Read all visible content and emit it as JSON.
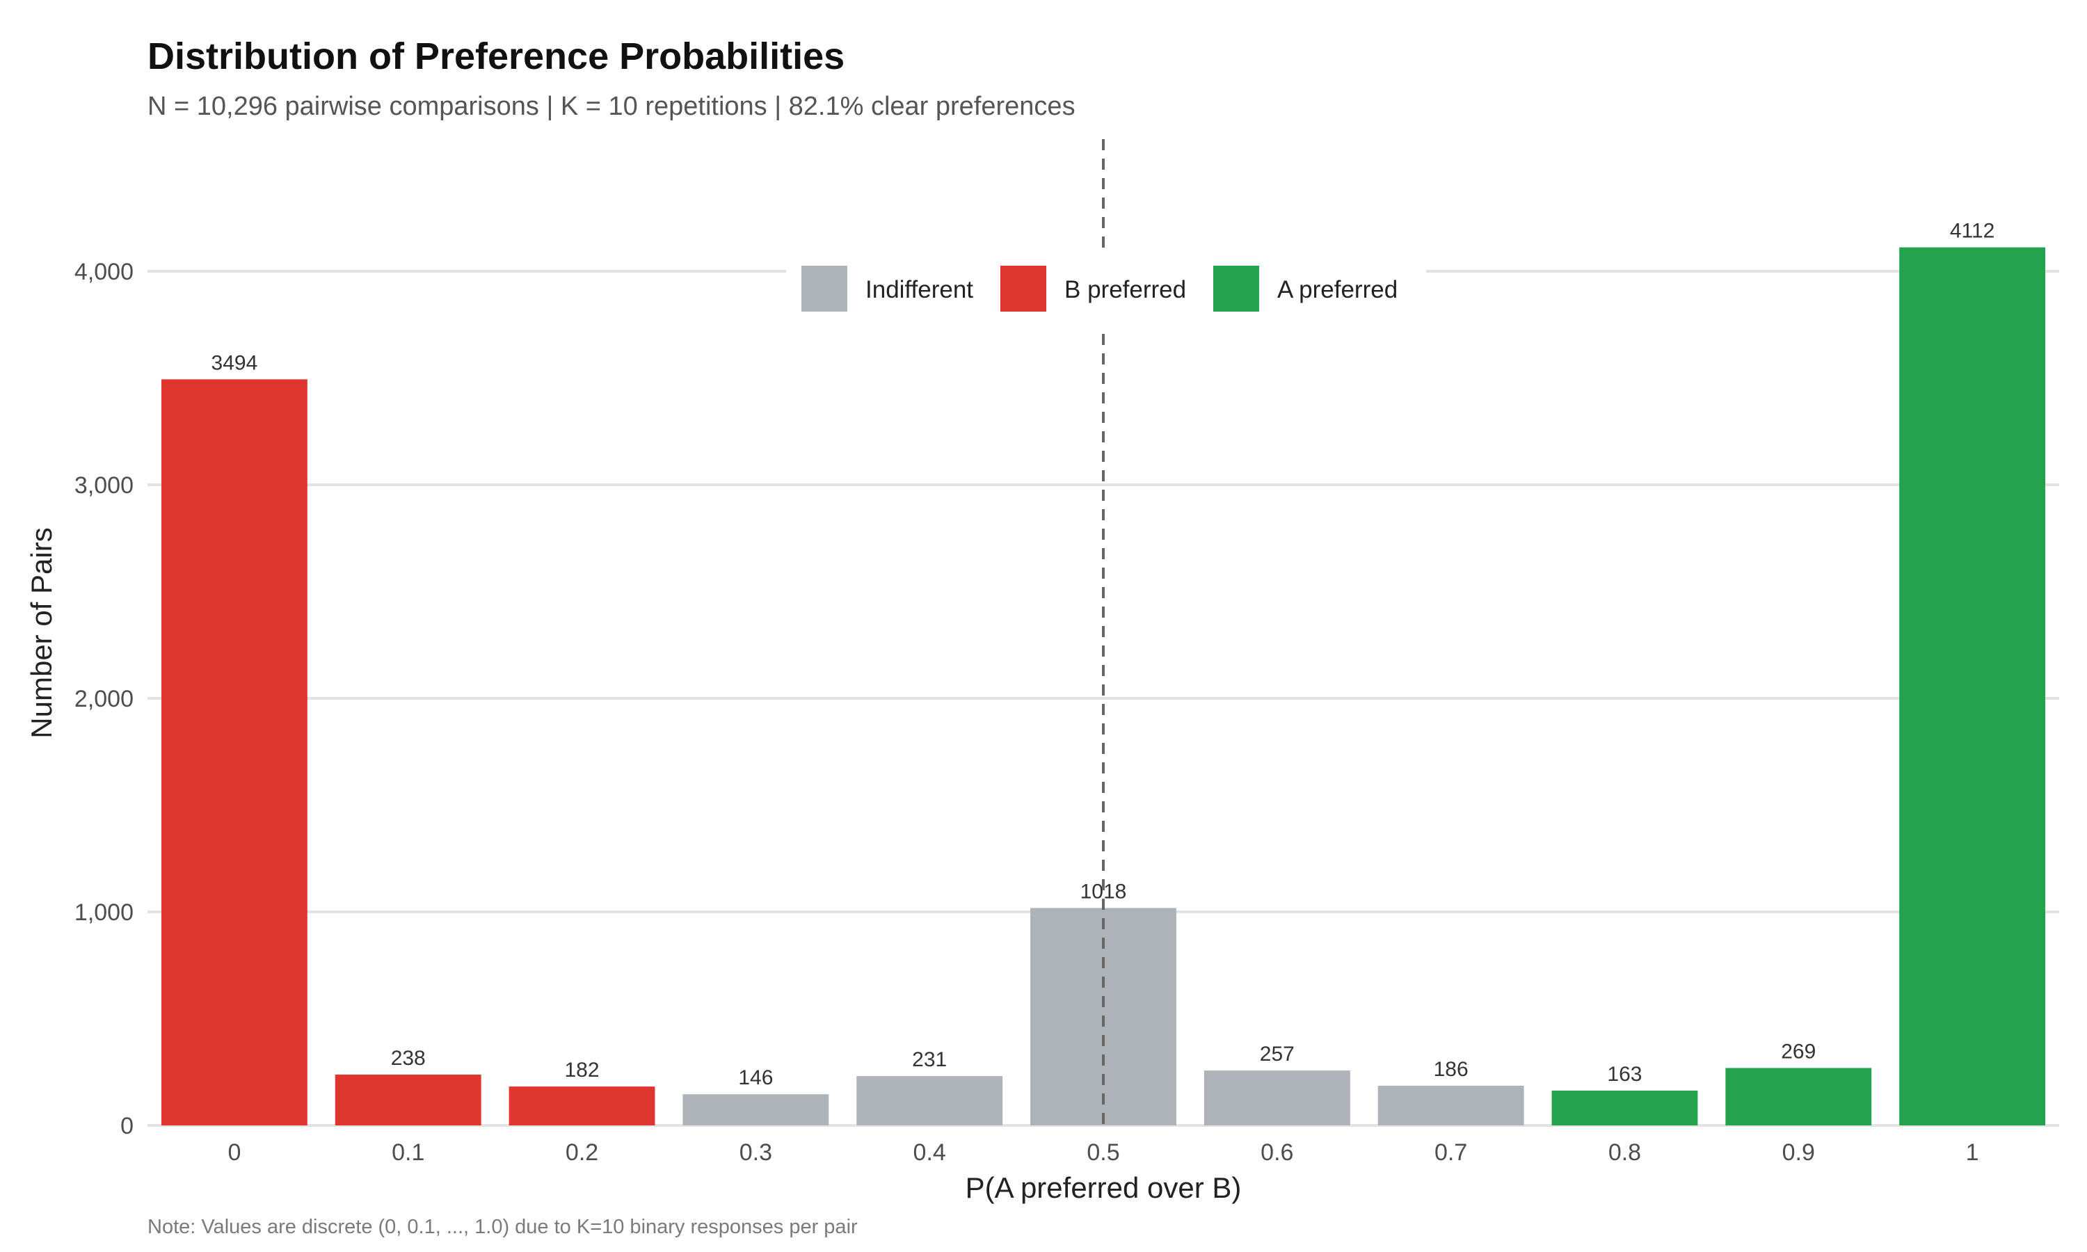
{
  "chart_data": {
    "type": "bar",
    "title": "Distribution of Preference Probabilities",
    "subtitle": "N = 10,296 pairwise comparisons | K = 10 repetitions | 82.1% clear preferences",
    "xlabel": "P(A preferred over B)",
    "ylabel": "Number of Pairs",
    "note": "Note: Values are discrete (0, 0.1, ..., 1.0) due to K=10 binary responses per pair",
    "categories": [
      "0",
      "0.1",
      "0.2",
      "0.3",
      "0.4",
      "0.5",
      "0.6",
      "0.7",
      "0.8",
      "0.9",
      "1"
    ],
    "values": [
      3494,
      238,
      182,
      146,
      231,
      1018,
      257,
      186,
      163,
      269,
      4112
    ],
    "groups": [
      "B preferred",
      "B preferred",
      "B preferred",
      "Indifferent",
      "Indifferent",
      "Indifferent",
      "Indifferent",
      "Indifferent",
      "A preferred",
      "A preferred",
      "A preferred"
    ],
    "ylim": [
      0,
      4600
    ],
    "yticks": [
      0,
      1000,
      2000,
      3000,
      4000
    ],
    "ytick_labels": [
      "0",
      "1,000",
      "2,000",
      "3,000",
      "4,000"
    ],
    "reference_line": {
      "x": "0.5",
      "style": "dashed"
    },
    "grid": true,
    "legend": {
      "position": "top-center",
      "entries": [
        {
          "label": "Indifferent",
          "color": "#adb3b9"
        },
        {
          "label": "B preferred",
          "color": "#e0352f"
        },
        {
          "label": "A preferred",
          "color": "#25a24e"
        }
      ]
    }
  }
}
